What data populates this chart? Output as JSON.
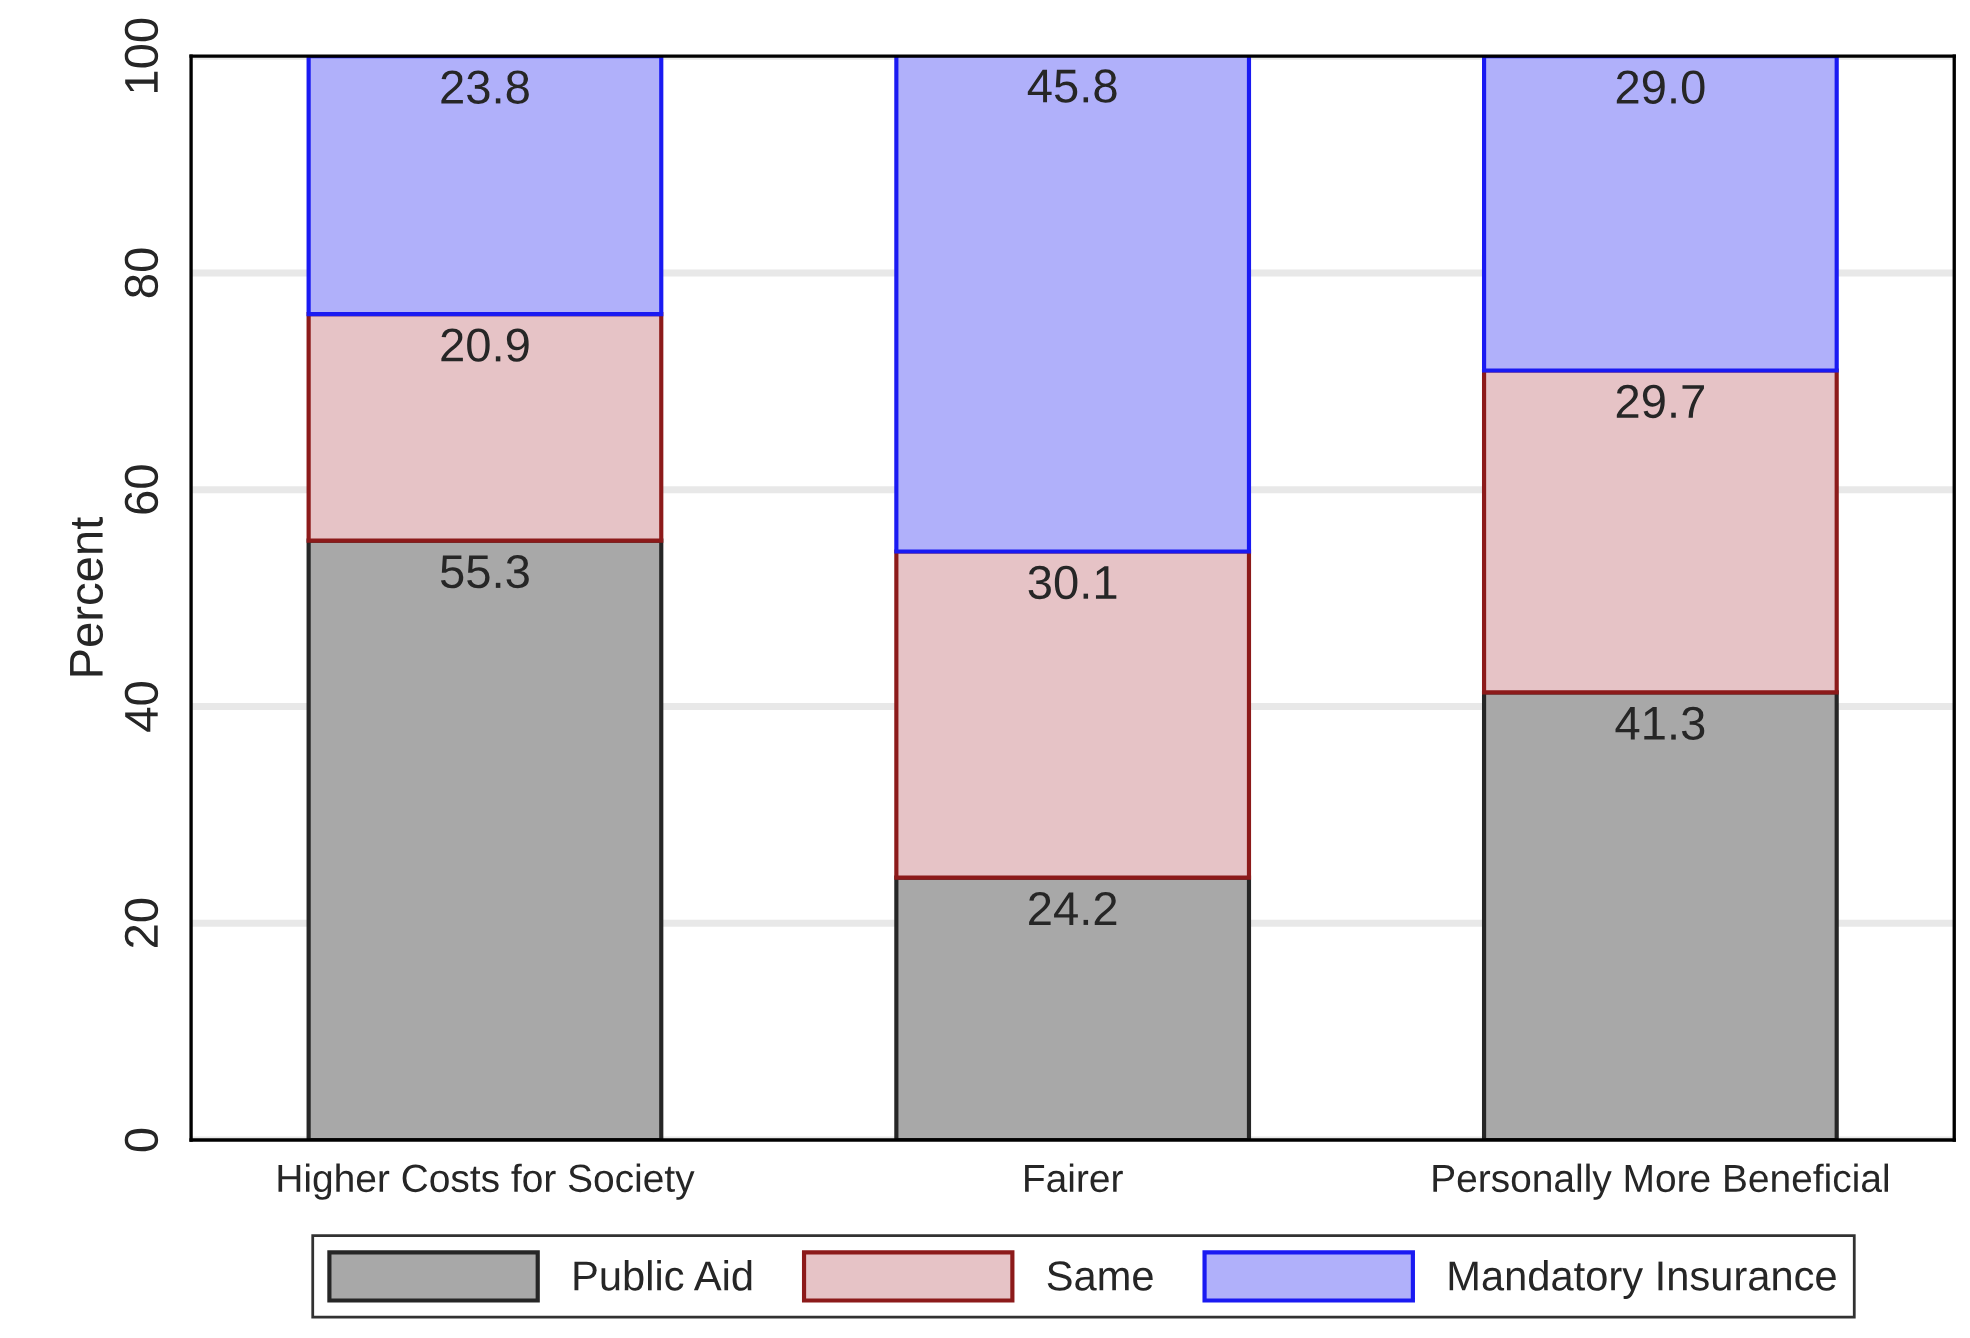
{
  "chart_data": {
    "type": "bar",
    "stacked": true,
    "ylabel": "Percent",
    "categories": [
      "Higher Costs for Society",
      "Fairer",
      "Personally More Beneficial"
    ],
    "series": [
      {
        "name": "Public Aid",
        "color": "#a8a8a8",
        "values": [
          55.3,
          24.2,
          41.3
        ]
      },
      {
        "name": "Same",
        "color": "#e6c3c6",
        "values": [
          20.9,
          30.1,
          29.7
        ]
      },
      {
        "name": "Mandatory Insurance",
        "color": "#b0b0fa",
        "values": [
          23.8,
          45.8,
          29.0
        ],
        "value_labels": [
          "23.8",
          "45.8",
          "29.0"
        ]
      }
    ],
    "ylim": [
      0,
      100
    ],
    "yticks": [
      0,
      20,
      40,
      60,
      80,
      100
    ],
    "grid": "y",
    "legend": "bottom",
    "data_labels": true
  }
}
